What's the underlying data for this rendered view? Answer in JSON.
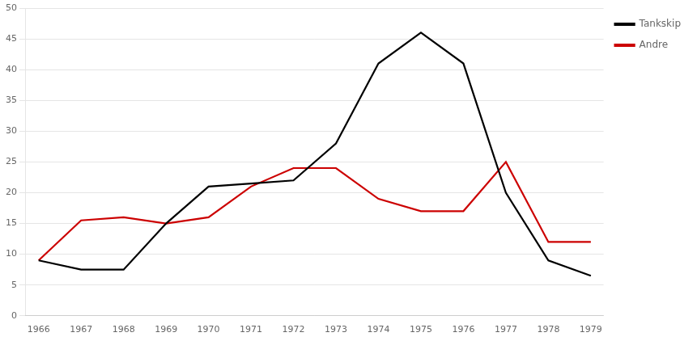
{
  "chart_data": {
    "type": "line",
    "x": [
      1966,
      1967,
      1968,
      1969,
      1970,
      1971,
      1972,
      1973,
      1974,
      1975,
      1976,
      1977,
      1978,
      1979
    ],
    "series": [
      {
        "name": "Tankskip",
        "color": "#000000",
        "values": [
          9,
          7.5,
          7.5,
          15,
          21,
          21.5,
          22,
          28,
          41,
          46,
          41,
          20,
          9,
          6.5
        ]
      },
      {
        "name": "Andre",
        "color": "#cc0000",
        "values": [
          9,
          15.5,
          16,
          15,
          16,
          21,
          24,
          24,
          19,
          17,
          17,
          25,
          12,
          12
        ]
      }
    ],
    "xlim": [
      1965.7,
      1979.3
    ],
    "xticks": [
      1966,
      1967,
      1968,
      1969,
      1970,
      1971,
      1972,
      1973,
      1974,
      1975,
      1976,
      1977,
      1978,
      1979
    ],
    "ylim": [
      0,
      50
    ],
    "yticks": [
      0,
      5,
      10,
      15,
      20,
      25,
      30,
      35,
      40,
      45,
      50
    ],
    "grid": "y",
    "legend": "right"
  }
}
